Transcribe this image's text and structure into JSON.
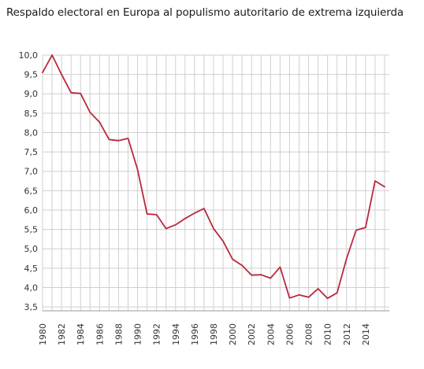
{
  "chart_data": {
    "type": "line",
    "title": "Respaldo electoral en Europa al populismo autoritario de extrema izquierda",
    "xlabel": "",
    "ylabel": "",
    "x": [
      1980,
      1981,
      1982,
      1983,
      1984,
      1985,
      1986,
      1987,
      1988,
      1989,
      1990,
      1991,
      1992,
      1993,
      1994,
      1995,
      1996,
      1997,
      1998,
      1999,
      2000,
      2001,
      2002,
      2003,
      2004,
      2005,
      2006,
      2007,
      2008,
      2009,
      2010,
      2011,
      2012,
      2013,
      2014,
      2015,
      2016
    ],
    "values": [
      9.55,
      10.0,
      9.5,
      9.03,
      9.01,
      8.52,
      8.27,
      7.82,
      7.79,
      7.85,
      7.05,
      5.9,
      5.88,
      5.52,
      5.62,
      5.78,
      5.92,
      6.04,
      5.52,
      5.2,
      4.73,
      4.57,
      4.32,
      4.33,
      4.24,
      4.53,
      3.73,
      3.81,
      3.75,
      3.97,
      3.72,
      3.86,
      4.75,
      5.48,
      5.55,
      6.75,
      6.6
    ],
    "ylim": [
      3.4,
      10.0
    ],
    "xlim": [
      1980,
      2016.5
    ],
    "yticks": [
      "10,0",
      "9,5",
      "9,0",
      "8,5",
      "8,0",
      "7,5",
      "7,0",
      "6,5",
      "6,0",
      "5,5",
      "5,0",
      "4,5",
      "4,0",
      "3,5"
    ],
    "ytick_values": [
      10.0,
      9.5,
      9.0,
      8.5,
      8.0,
      7.5,
      7.0,
      6.5,
      6.0,
      5.5,
      5.0,
      4.5,
      4.0,
      3.5
    ],
    "xticks": [
      "1980",
      "1982",
      "1984",
      "1986",
      "1988",
      "1990",
      "1992",
      "1994",
      "1996",
      "1998",
      "2000",
      "2002",
      "2004",
      "2006",
      "2008",
      "2010",
      "2012",
      "2014"
    ],
    "xtick_values": [
      1980,
      1982,
      1984,
      1986,
      1988,
      1990,
      1992,
      1994,
      1996,
      1998,
      2000,
      2002,
      2004,
      2006,
      2008,
      2010,
      2012,
      2014
    ],
    "grid": true,
    "line_color": "#b8283c",
    "grid_color": "#cfcfcf"
  }
}
